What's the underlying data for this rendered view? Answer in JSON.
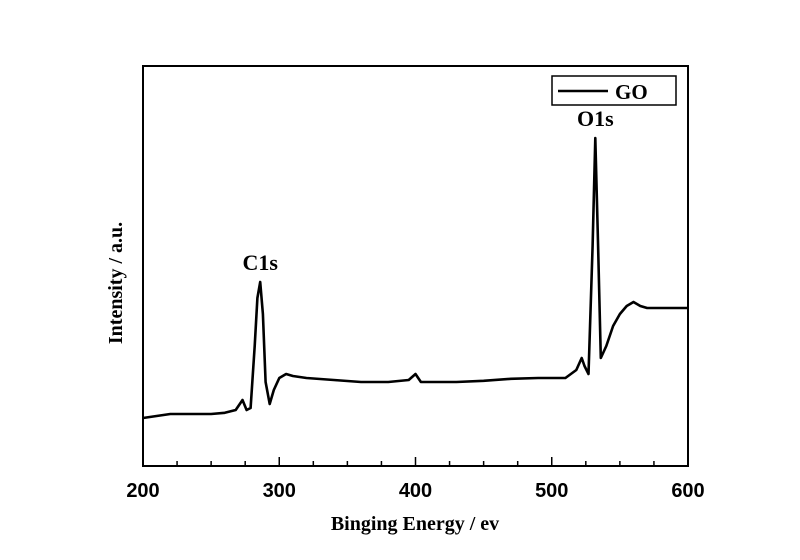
{
  "chart_data": {
    "type": "line",
    "title": "",
    "xlabel": "Binging Energy / ev",
    "ylabel": "Intensity / a.u.",
    "xlim": [
      200,
      600
    ],
    "ylim": [
      0,
      100
    ],
    "x_ticks": [
      "200",
      "300",
      "400",
      "500",
      "600"
    ],
    "y_ticks_labeled": false,
    "grid": false,
    "legend_position": "top-right",
    "line_color": "#000000",
    "series": [
      {
        "name": "GO",
        "x": [
          200,
          210,
          220,
          230,
          240,
          250,
          260,
          268,
          273,
          276,
          279,
          282,
          284,
          286,
          288,
          290,
          293,
          296,
          300,
          305,
          310,
          320,
          340,
          360,
          380,
          395,
          400,
          402,
          404,
          410,
          430,
          450,
          470,
          490,
          500,
          510,
          518,
          522,
          524,
          527,
          530,
          532,
          534,
          536,
          540,
          545,
          550,
          555,
          560,
          565,
          570,
          580,
          590,
          600
        ],
        "y": [
          12,
          12.5,
          13,
          13,
          13,
          13,
          13.3,
          14,
          16.5,
          14,
          14.5,
          30,
          42,
          46,
          38,
          21,
          15.5,
          19,
          22,
          23,
          22.5,
          22,
          21.5,
          21,
          21,
          21.5,
          23,
          22,
          21,
          21,
          21,
          21.3,
          21.8,
          22,
          22,
          22,
          24,
          27,
          25,
          23,
          55,
          82,
          55,
          27,
          30,
          35,
          38,
          40,
          41,
          40,
          39.5,
          39.5,
          39.5,
          39.5
        ]
      }
    ],
    "annotations": [
      {
        "text": "C1s",
        "x": 286,
        "y": 46
      },
      {
        "text": "O1s",
        "x": 532,
        "y": 82
      }
    ]
  }
}
